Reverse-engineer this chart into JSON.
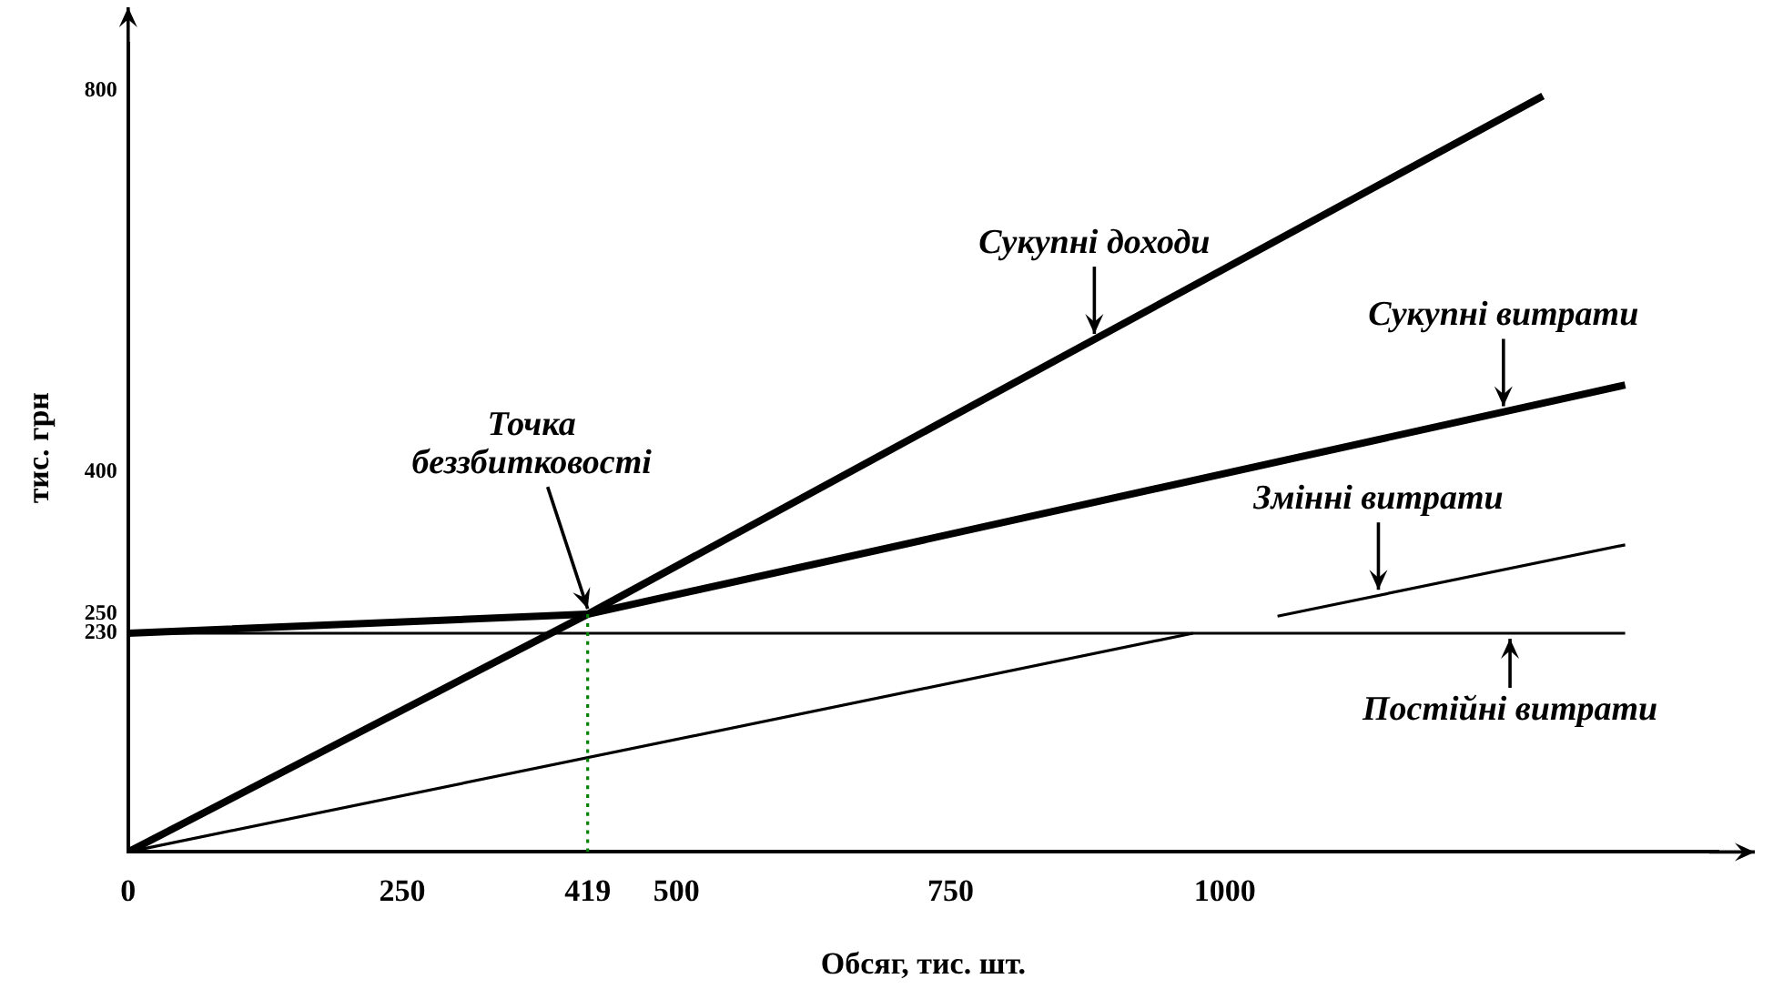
{
  "chart_data": {
    "type": "line",
    "xlabel": "Обсяг, тис. шт.",
    "ylabel": "тис. грн",
    "xlim": [
      0,
      1450
    ],
    "xticks": [
      0,
      250,
      419,
      500,
      750,
      1000
    ],
    "ylim": [
      0,
      850
    ],
    "yticks": [
      230,
      250,
      400,
      800
    ],
    "grid": false,
    "legend": false,
    "marker": "none",
    "line_style": "solid",
    "series": [
      {
        "color": "#000000",
        "x": [
          0,
          419,
          1290
        ],
        "values": [
          0,
          250,
          795
        ]
      },
      {
        "color": "#000000",
        "x": [
          0,
          419,
          1365
        ],
        "values": [
          230,
          250,
          491
        ]
      },
      {
        "color": "#000000",
        "x": [
          0,
          971,
          1010,
          1048,
          1365
        ],
        "values": [
          0,
          230,
          null,
          248,
          323
        ]
      },
      {
        "color": "#000000",
        "x": [
          0,
          1365
        ],
        "values": [
          230,
          230
        ]
      },
      {
        "color": "#008000",
        "line_style": "dotted",
        "x": [
          419,
          419
        ],
        "values": [
          0,
          250
        ]
      }
    ],
    "annotations": [
      {
        "text": "Сукупні доходи",
        "x": 881,
        "y": 539
      },
      {
        "text": "Сукупні витрати",
        "x": 1254,
        "y": 463
      },
      {
        "text": "Змінні витрати",
        "x": 1140,
        "y": 270
      },
      {
        "text": "Постійні витрати",
        "x": 1260,
        "y": 230
      },
      {
        "text": "Точка беззбитковості",
        "x": 419,
        "y": 250
      }
    ]
  }
}
